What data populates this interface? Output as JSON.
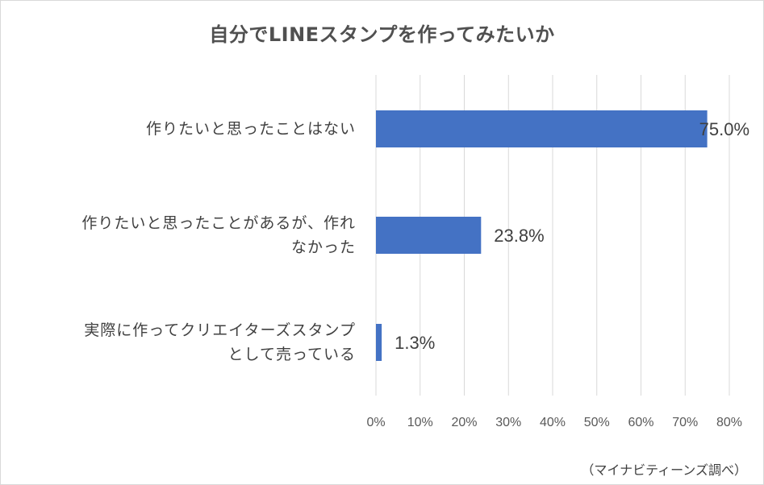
{
  "chart_data": {
    "type": "bar",
    "orientation": "horizontal",
    "title": "自分でLINEスタンプを作ってみたいか",
    "categories": [
      "作りたいと思ったことはない",
      "作りたいと思ったことがあるが、作れなかった",
      "実際に作ってクリエイターズスタンプとして売っている"
    ],
    "category_lines": [
      [
        "作りたいと思ったことはない"
      ],
      [
        "作りたいと思ったことがあるが、作れ",
        "なかった"
      ],
      [
        "実際に作ってクリエイターズスタンプ",
        "として売っている"
      ]
    ],
    "values": [
      75.0,
      23.8,
      1.3
    ],
    "data_labels": [
      "75.0%",
      "23.8%",
      "1.3%"
    ],
    "xlim": [
      0,
      80
    ],
    "x_ticks": [
      "0%",
      "10%",
      "20%",
      "30%",
      "40%",
      "50%",
      "60%",
      "70%",
      "80%"
    ],
    "grid": true,
    "bar_color": "#4472C4",
    "source": "（マイナビティーンズ調べ）"
  }
}
